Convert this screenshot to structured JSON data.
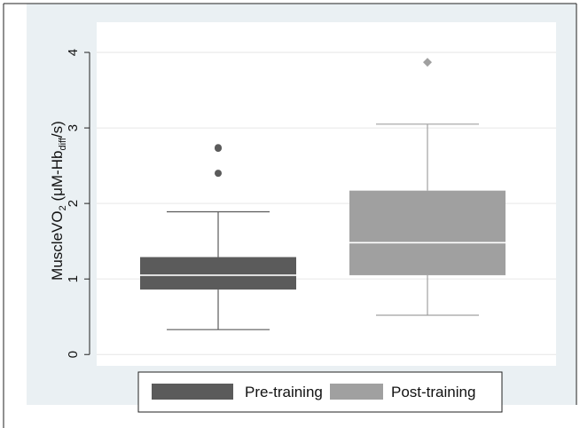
{
  "chart_data": {
    "type": "box",
    "ylabel_main": "MuscleVO",
    "ylabel_sub2": "2",
    "ylabel_mid": " (μM-Hb",
    "ylabel_sub": "diff",
    "ylabel_end": "/s)",
    "xlabel": "",
    "title": "",
    "ylim": [
      -0.15,
      4.4
    ],
    "yticks": [
      0,
      1,
      2,
      3,
      4
    ],
    "grid": true,
    "legend_position": "bottom",
    "colors": {
      "Pre-training": "#5b5b5b",
      "Post-training": "#a0a0a0",
      "plot_bg": "#ffffff",
      "outer_bg": "#eaf0f3"
    },
    "series": [
      {
        "name": "Pre-training",
        "whisker_low": 0.33,
        "q1": 0.86,
        "median": 1.05,
        "q3": 1.29,
        "whisker_high": 1.89,
        "outliers": [
          2.4,
          2.73,
          2.74
        ],
        "outlier_marker": "circle"
      },
      {
        "name": "Post-training",
        "whisker_low": 0.52,
        "q1": 1.05,
        "median": 1.48,
        "q3": 2.17,
        "whisker_high": 3.05,
        "outliers": [
          3.87
        ],
        "outlier_marker": "diamond"
      }
    ]
  }
}
